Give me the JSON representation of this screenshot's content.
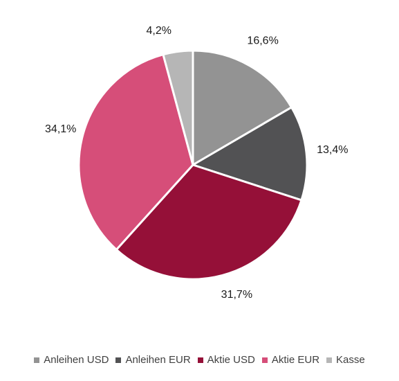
{
  "chart_data": {
    "type": "pie",
    "categories": [
      "Anleihen USD",
      "Anleihen EUR",
      "Aktie USD",
      "Aktie EUR",
      "Kasse"
    ],
    "values": [
      16.6,
      13.4,
      31.7,
      34.1,
      4.2
    ],
    "labels": [
      "16,6%",
      "13,4%",
      "31,7%",
      "34,1%",
      "4,2%"
    ],
    "colors": [
      "#939393",
      "#525254",
      "#951038",
      "#d64e79",
      "#b6b6b6"
    ],
    "start_angle_deg": 0,
    "direction": "clockwise",
    "legend_position": "bottom"
  }
}
